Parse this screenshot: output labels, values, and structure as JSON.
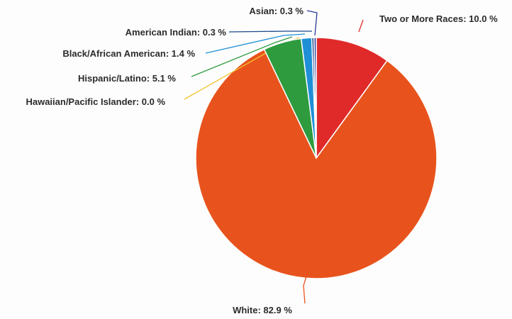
{
  "chart_data": {
    "type": "pie",
    "title": "",
    "legend": "none",
    "slices": [
      {
        "name": "Two or More Races",
        "value": 10.0,
        "label": "Two or More Races: 10.0 %",
        "color": "#e02a2a"
      },
      {
        "name": "White",
        "value": 82.9,
        "label": "White: 82.9 %",
        "color": "#e8531d"
      },
      {
        "name": "Hawaiian/Pacific Islander",
        "value": 0.0,
        "label": "Hawaiian/Pacific Islander: 0.0 %",
        "color": "#f2c230"
      },
      {
        "name": "Hispanic/Latino",
        "value": 5.1,
        "label": "Hispanic/Latino: 5.1 %",
        "color": "#2e9b3f"
      },
      {
        "name": "Black/African American",
        "value": 1.4,
        "label": "Black/African American: 1.4 %",
        "color": "#1f8fd6"
      },
      {
        "name": "American Indian",
        "value": 0.3,
        "label": "American Indian: 0.3 %",
        "color": "#1a4a8a"
      },
      {
        "name": "Asian",
        "value": 0.3,
        "label": "Asian: 0.3 %",
        "color": "#2b3a9a"
      }
    ]
  }
}
